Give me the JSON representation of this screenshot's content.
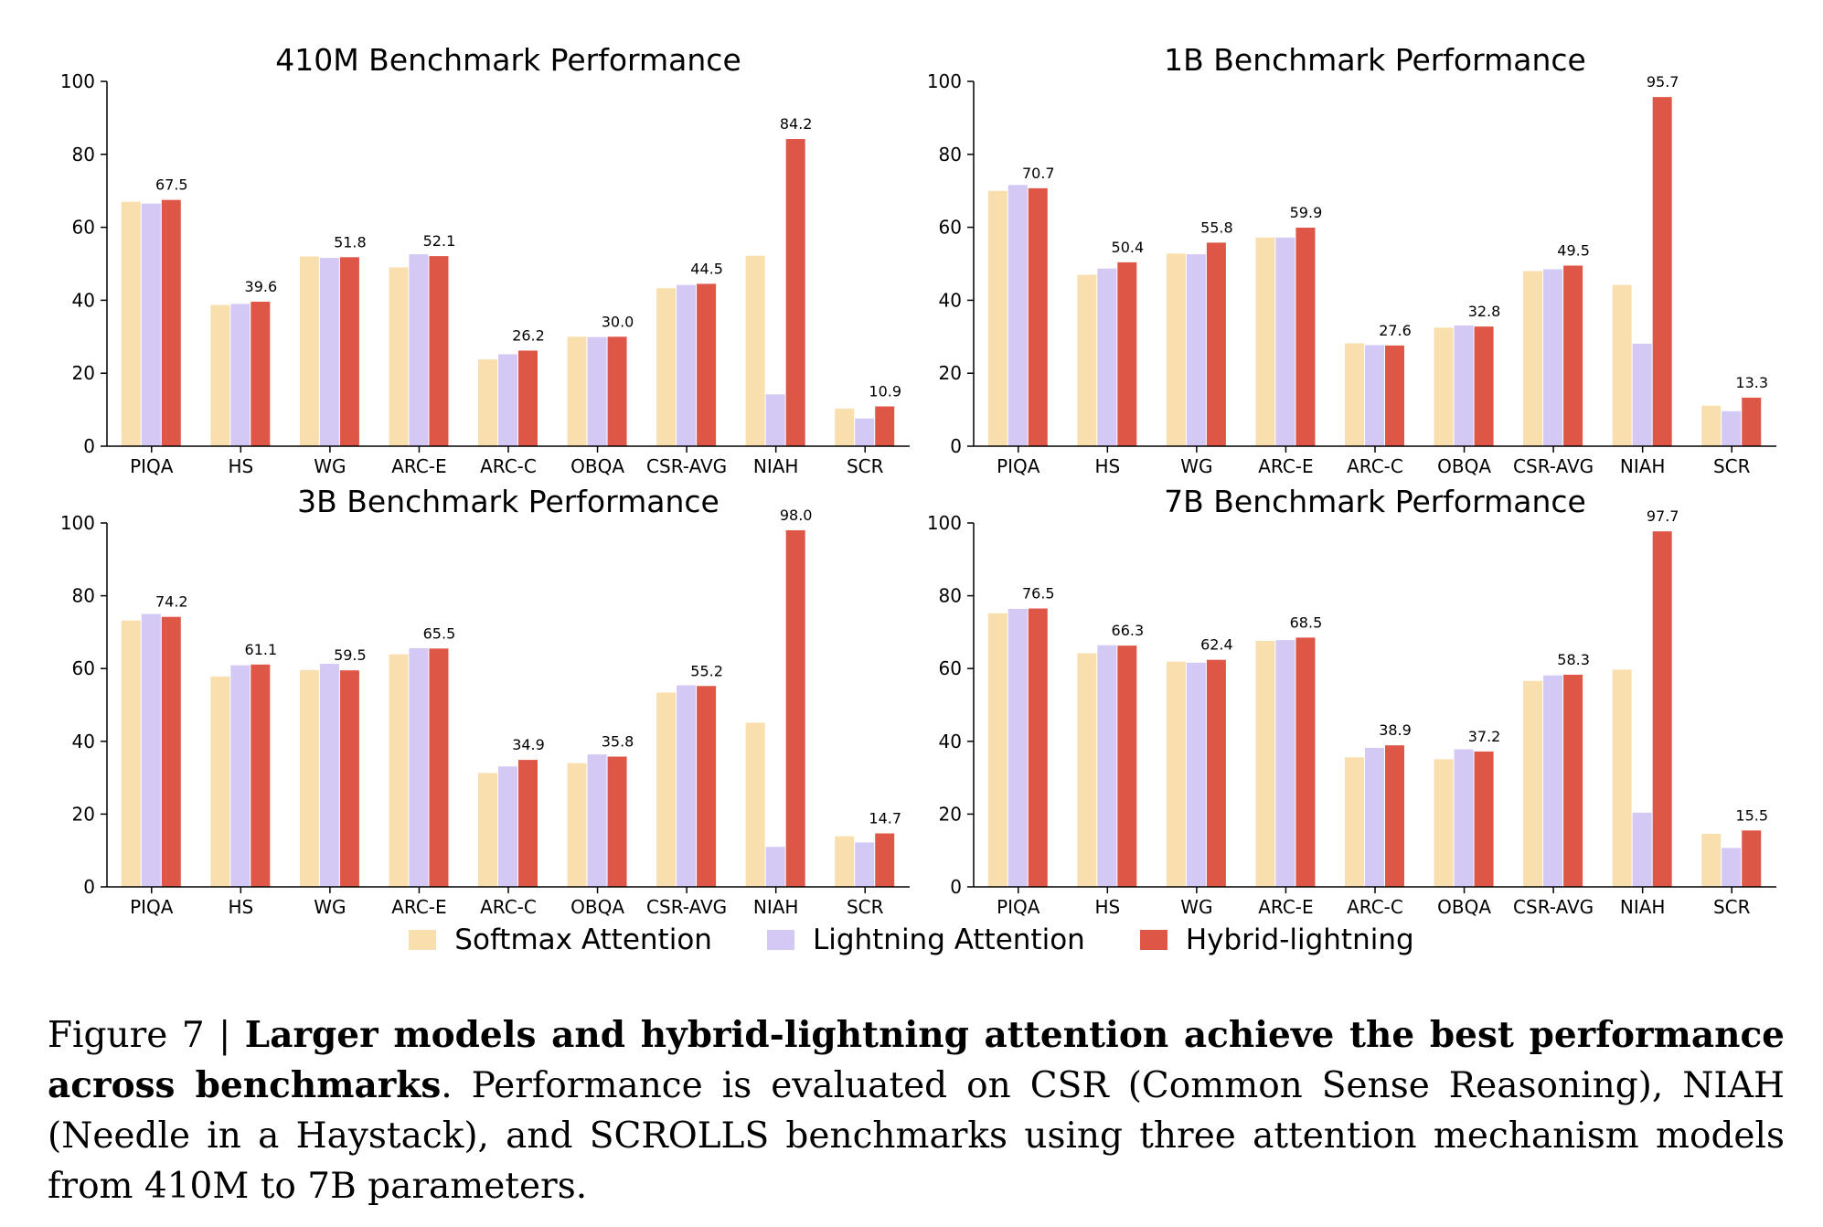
{
  "chart_data": [
    {
      "type": "bar",
      "title": "410M Benchmark Performance",
      "categories": [
        "PIQA",
        "HS",
        "WG",
        "ARC-E",
        "ARC-C",
        "OBQA",
        "CSR-AVG",
        "NIAH",
        "SCR"
      ],
      "ylim": [
        0,
        100
      ],
      "yticks": [
        "0",
        "20",
        "40",
        "60",
        "80",
        "100"
      ],
      "series": [
        {
          "name": "Softmax Attention",
          "values": [
            67.0,
            38.7,
            52.0,
            49.0,
            23.8,
            30.0,
            43.3,
            52.2,
            10.3
          ]
        },
        {
          "name": "Lightning Attention",
          "values": [
            66.5,
            39.0,
            51.6,
            52.6,
            25.2,
            29.9,
            44.2,
            14.2,
            7.6
          ]
        },
        {
          "name": "Hybrid-lightning",
          "values": [
            67.5,
            39.6,
            51.8,
            52.1,
            26.2,
            30.0,
            44.5,
            84.2,
            10.9
          ]
        }
      ],
      "data_labels": [
        "67.5",
        "39.6",
        "51.8",
        "52.1",
        "26.2",
        "30.0",
        "44.5",
        "84.2",
        "10.9"
      ]
    },
    {
      "type": "bar",
      "title": "1B Benchmark Performance",
      "categories": [
        "PIQA",
        "HS",
        "WG",
        "ARC-E",
        "ARC-C",
        "OBQA",
        "CSR-AVG",
        "NIAH",
        "SCR"
      ],
      "ylim": [
        0,
        100
      ],
      "yticks": [
        "0",
        "20",
        "40",
        "60",
        "80",
        "100"
      ],
      "series": [
        {
          "name": "Softmax Attention",
          "values": [
            70.0,
            47.0,
            52.8,
            57.2,
            28.2,
            32.5,
            48.0,
            44.2,
            11.1
          ]
        },
        {
          "name": "Lightning Attention",
          "values": [
            71.6,
            48.7,
            52.6,
            57.2,
            27.7,
            33.1,
            48.5,
            28.1,
            9.6
          ]
        },
        {
          "name": "Hybrid-lightning",
          "values": [
            70.7,
            50.4,
            55.8,
            59.9,
            27.6,
            32.8,
            49.5,
            95.7,
            13.3
          ]
        }
      ],
      "data_labels": [
        "70.7",
        "50.4",
        "55.8",
        "59.9",
        "27.6",
        "32.8",
        "49.5",
        "95.7",
        "13.3"
      ]
    },
    {
      "type": "bar",
      "title": "3B Benchmark Performance",
      "categories": [
        "PIQA",
        "HS",
        "WG",
        "ARC-E",
        "ARC-C",
        "OBQA",
        "CSR-AVG",
        "NIAH",
        "SCR"
      ],
      "ylim": [
        0,
        100
      ],
      "yticks": [
        "0",
        "20",
        "40",
        "60",
        "80",
        "100"
      ],
      "series": [
        {
          "name": "Softmax Attention",
          "values": [
            73.2,
            57.8,
            59.6,
            63.9,
            31.3,
            34.0,
            53.4,
            45.1,
            13.9
          ]
        },
        {
          "name": "Lightning Attention",
          "values": [
            75.0,
            60.9,
            61.3,
            65.6,
            33.1,
            36.4,
            55.4,
            11.0,
            12.2
          ]
        },
        {
          "name": "Hybrid-lightning",
          "values": [
            74.2,
            61.1,
            59.5,
            65.5,
            34.9,
            35.8,
            55.2,
            98.0,
            14.7
          ]
        }
      ],
      "data_labels": [
        "74.2",
        "61.1",
        "59.5",
        "65.5",
        "34.9",
        "35.8",
        "55.2",
        "98.0",
        "14.7"
      ]
    },
    {
      "type": "bar",
      "title": "7B Benchmark Performance",
      "categories": [
        "PIQA",
        "HS",
        "WG",
        "ARC-E",
        "ARC-C",
        "OBQA",
        "CSR-AVG",
        "NIAH",
        "SCR"
      ],
      "ylim": [
        0,
        100
      ],
      "yticks": [
        "0",
        "20",
        "40",
        "60",
        "80",
        "100"
      ],
      "series": [
        {
          "name": "Softmax Attention",
          "values": [
            75.2,
            64.2,
            61.9,
            67.6,
            35.6,
            35.1,
            56.6,
            59.7,
            14.6
          ]
        },
        {
          "name": "Lightning Attention",
          "values": [
            76.4,
            66.4,
            61.6,
            67.8,
            38.2,
            37.8,
            58.1,
            20.4,
            10.7
          ]
        },
        {
          "name": "Hybrid-lightning",
          "values": [
            76.5,
            66.3,
            62.4,
            68.5,
            38.9,
            37.2,
            58.3,
            97.7,
            15.5
          ]
        }
      ],
      "data_labels": [
        "76.5",
        "66.3",
        "62.4",
        "68.5",
        "38.9",
        "37.2",
        "58.3",
        "97.7",
        "15.5"
      ]
    }
  ],
  "colors": {
    "Softmax Attention": "#fadfae",
    "Lightning Attention": "#d4c8f4",
    "Hybrid-lightning": "#dd5646",
    "axis": "#000000"
  },
  "legend": {
    "items": [
      "Softmax Attention",
      "Lightning Attention",
      "Hybrid-lightning"
    ]
  },
  "caption": {
    "figure_label": "Figure 7 |",
    "bold_title": "Larger models and hybrid-lightning attention achieve the best performance across benchmarks",
    "body": ". Performance is evaluated on CSR (Common Sense Reasoning), NIAH (Needle in a Haystack), and SCROLLS benchmarks using three attention mechanism models from 410M to 7B parameters."
  }
}
